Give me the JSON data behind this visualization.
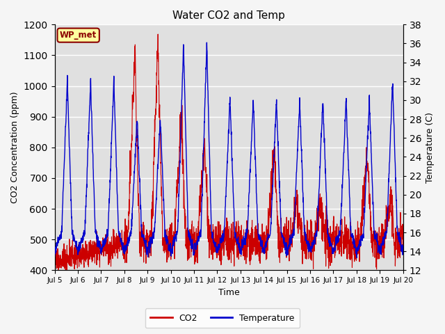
{
  "title": "Water CO2 and Temp",
  "xlabel": "Time",
  "ylabel_left": "CO2 Concentration (ppm)",
  "ylabel_right": "Temperature (C)",
  "co2_ylim": [
    400,
    1200
  ],
  "temp_ylim": [
    12,
    38
  ],
  "annotation": "WP_met",
  "plot_bg_color": "#e0e0e0",
  "fig_bg_color": "#f5f5f5",
  "legend_co2_label": "CO2",
  "legend_temp_label": "Temperature",
  "co2_color": "#cc0000",
  "temp_color": "#0000cc",
  "grid_color": "#ffffff"
}
